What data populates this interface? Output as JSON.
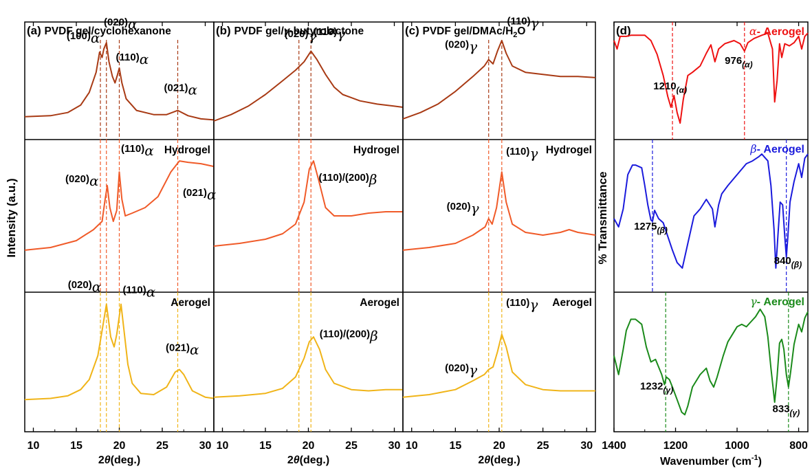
{
  "ylabel_left": "Intensity (a.u.)",
  "ylabel_right": "% Transmittance",
  "colors": {
    "cyclo": "#a83a14",
    "hydro": "#f05a28",
    "aero": "#f0b418",
    "alpha": "#ee1111",
    "beta": "#1a1adc",
    "gamma": "#1a8a1a"
  },
  "chart_data": [
    {
      "type": "line",
      "panel": "a",
      "title_prefix": "(a)",
      "title": "PVDF gel/cyclohexanone",
      "xlabel": "2θ(deg.)",
      "xticks": [
        "10",
        "15",
        "20",
        "25",
        "30"
      ],
      "xlim": [
        9,
        31
      ],
      "ref_lines": [
        17.8,
        18.5,
        20.0,
        26.8
      ],
      "series": [
        {
          "name": "",
          "color": "#a83a14",
          "x": [
            9,
            12,
            14,
            15.5,
            16.5,
            17.3,
            17.7,
            18.0,
            18.2,
            18.5,
            18.8,
            19.2,
            19.5,
            19.8,
            20.0,
            20.3,
            20.8,
            22,
            24,
            25.5,
            26.8,
            28,
            29.5,
            31
          ],
          "y": [
            0.16,
            0.17,
            0.2,
            0.27,
            0.39,
            0.58,
            0.77,
            0.72,
            0.8,
            0.86,
            0.68,
            0.54,
            0.48,
            0.56,
            0.62,
            0.48,
            0.33,
            0.22,
            0.18,
            0.18,
            0.22,
            0.17,
            0.14,
            0.13
          ],
          "labels": [
            {
              "text": "(100)",
              "greek": "α"
            },
            {
              "text": "(020)",
              "greek": "α"
            },
            {
              "text": "(110)",
              "greek": "α"
            },
            {
              "text": "(021)",
              "greek": "α"
            }
          ]
        },
        {
          "name": "Hydrogel",
          "color": "#f05a28",
          "x": [
            9,
            12,
            15,
            17,
            18,
            18.3,
            18.6,
            18.9,
            19.3,
            19.7,
            20.0,
            20.3,
            20.7,
            21.5,
            23,
            24.5,
            26,
            27,
            28,
            29.5,
            31
          ],
          "y": [
            0.25,
            0.27,
            0.32,
            0.4,
            0.46,
            0.6,
            0.72,
            0.56,
            0.46,
            0.54,
            0.82,
            0.62,
            0.5,
            0.52,
            0.56,
            0.64,
            0.82,
            0.9,
            0.89,
            0.88,
            0.86
          ],
          "labels": [
            {
              "text": "(020)",
              "greek": "α"
            },
            {
              "text": "(110)",
              "greek": "α"
            },
            {
              "text": "(021)",
              "greek": "α"
            }
          ]
        },
        {
          "name": "Aerogel",
          "color": "#f0b418",
          "x": [
            9,
            12,
            14,
            15.5,
            16.5,
            17.5,
            18.0,
            18.5,
            19.0,
            19.4,
            19.7,
            20.2,
            20.6,
            21.0,
            21.5,
            22.5,
            24,
            25.5,
            26.5,
            27,
            27.5,
            28.5,
            30,
            31
          ],
          "y": [
            0.2,
            0.21,
            0.23,
            0.28,
            0.36,
            0.55,
            0.75,
            0.96,
            0.7,
            0.62,
            0.72,
            0.96,
            0.72,
            0.48,
            0.33,
            0.25,
            0.24,
            0.3,
            0.42,
            0.44,
            0.4,
            0.27,
            0.22,
            0.21
          ],
          "labels": [
            {
              "text": "(020)",
              "greek": "α"
            },
            {
              "text": "(110)",
              "greek": "α"
            },
            {
              "text": "(021)",
              "greek": "α"
            }
          ]
        }
      ]
    },
    {
      "type": "line",
      "panel": "b",
      "title_prefix": "(b)",
      "title": "PVDF gel/γ-butyrolactone",
      "xlabel": "2θ(deg.)",
      "xticks": [
        "10",
        "15",
        "20",
        "25",
        "30"
      ],
      "xlim": [
        9,
        31
      ],
      "ref_lines": [
        18.9,
        20.3
      ],
      "series": [
        {
          "name": "",
          "color": "#a83a14",
          "x": [
            9,
            11,
            13,
            15,
            17,
            18.5,
            19.5,
            20.3,
            21,
            22,
            23,
            24,
            26,
            28,
            30,
            31
          ],
          "y": [
            0.12,
            0.18,
            0.26,
            0.37,
            0.5,
            0.6,
            0.68,
            0.78,
            0.7,
            0.56,
            0.44,
            0.37,
            0.31,
            0.28,
            0.26,
            0.25
          ],
          "labels": [
            {
              "text": "(020)",
              "greek": "γ"
            },
            {
              "text": "(110)",
              "greek": "γ"
            }
          ]
        },
        {
          "name": "Hydrogel",
          "color": "#f05a28",
          "x": [
            9,
            12,
            15,
            17,
            18.5,
            19.5,
            20.1,
            20.6,
            21.2,
            22,
            23,
            25,
            27,
            29,
            31
          ],
          "y": [
            0.28,
            0.3,
            0.33,
            0.37,
            0.44,
            0.6,
            0.84,
            0.9,
            0.76,
            0.56,
            0.5,
            0.5,
            0.52,
            0.53,
            0.53
          ],
          "labels": [
            {
              "text": "(110)/(200)",
              "greek": "β"
            }
          ]
        },
        {
          "name": "Aerogel",
          "color": "#f0b418",
          "x": [
            9,
            12,
            15,
            17,
            18.5,
            19.5,
            20.1,
            20.6,
            21.3,
            22,
            23,
            25,
            27,
            29,
            31
          ],
          "y": [
            0.22,
            0.23,
            0.25,
            0.29,
            0.38,
            0.53,
            0.66,
            0.7,
            0.6,
            0.44,
            0.33,
            0.28,
            0.27,
            0.28,
            0.28
          ],
          "labels": [
            {
              "text": "(110)/(200)",
              "greek": "β"
            }
          ]
        }
      ]
    },
    {
      "type": "line",
      "panel": "c",
      "title_prefix": "(c)",
      "title": "PVDF gel/DMAc/H",
      "title_sub": "2",
      "title_end": "O",
      "xlabel": "2θ(deg.)",
      "xticks": [
        "10",
        "15",
        "20",
        "25",
        "30"
      ],
      "xlim": [
        9,
        31
      ],
      "ref_lines": [
        18.8,
        20.3
      ],
      "series": [
        {
          "name": "",
          "color": "#a83a14",
          "x": [
            9,
            11,
            13,
            15,
            17,
            18.3,
            18.8,
            19.3,
            19.8,
            20.3,
            20.8,
            21.5,
            23,
            25,
            27,
            29,
            31
          ],
          "y": [
            0.14,
            0.2,
            0.28,
            0.4,
            0.54,
            0.64,
            0.7,
            0.66,
            0.78,
            0.88,
            0.76,
            0.64,
            0.58,
            0.56,
            0.54,
            0.54,
            0.53
          ],
          "labels": [
            {
              "text": "(020)",
              "greek": "γ"
            },
            {
              "text": "(110)",
              "greek": "γ"
            }
          ]
        },
        {
          "name": "Hydrogel",
          "color": "#f05a28",
          "x": [
            9,
            12,
            15,
            17,
            18.4,
            18.8,
            19.2,
            19.7,
            20.3,
            20.8,
            21.5,
            23,
            25,
            27,
            28,
            29,
            31
          ],
          "y": [
            0.25,
            0.27,
            0.3,
            0.36,
            0.42,
            0.48,
            0.44,
            0.56,
            0.82,
            0.6,
            0.44,
            0.38,
            0.36,
            0.38,
            0.4,
            0.38,
            0.36
          ],
          "labels": [
            {
              "text": "(020)",
              "greek": "γ"
            },
            {
              "text": "(110)",
              "greek": "γ"
            }
          ]
        },
        {
          "name": "Aerogel",
          "color": "#f0b418",
          "x": [
            9,
            12,
            15,
            17,
            18.3,
            18.8,
            19.3,
            19.8,
            20.3,
            20.8,
            21.5,
            23,
            25,
            27,
            29,
            31
          ],
          "y": [
            0.22,
            0.24,
            0.28,
            0.35,
            0.4,
            0.44,
            0.46,
            0.58,
            0.72,
            0.62,
            0.42,
            0.32,
            0.28,
            0.27,
            0.27,
            0.27
          ],
          "labels": [
            {
              "text": "(020)",
              "greek": "γ"
            },
            {
              "text": "(110)",
              "greek": "γ"
            }
          ]
        }
      ]
    },
    {
      "type": "line",
      "panel": "d",
      "title_prefix": "(d)",
      "xlabel": "Wavenumber (cm",
      "xlabel_sup": "-1",
      "xlabel_end": ")",
      "xticks": [
        "1400",
        "1200",
        "1000",
        "800"
      ],
      "xlim": [
        1400,
        770
      ],
      "series": [
        {
          "name": "α- Aerogel",
          "greek": "α",
          "rest": "- Aerogel",
          "color": "#ee1111",
          "x": [
            1400,
            1390,
            1380,
            1360,
            1345,
            1330,
            1300,
            1280,
            1260,
            1240,
            1225,
            1215,
            1205,
            1195,
            1185,
            1175,
            1160,
            1145,
            1120,
            1100,
            1085,
            1072,
            1060,
            1040,
            1010,
            990,
            976,
            965,
            945,
            920,
            900,
            885,
            878,
            870,
            862,
            855,
            845,
            830,
            815,
            800,
            790,
            780,
            770
          ],
          "y": [
            0.88,
            0.8,
            0.92,
            0.92,
            0.93,
            0.93,
            0.93,
            0.88,
            0.75,
            0.55,
            0.35,
            0.25,
            0.36,
            0.2,
            0.1,
            0.32,
            0.55,
            0.58,
            0.64,
            0.76,
            0.84,
            0.68,
            0.8,
            0.85,
            0.88,
            0.85,
            0.78,
            0.86,
            0.9,
            0.93,
            0.95,
            0.8,
            0.3,
            0.5,
            0.85,
            0.72,
            0.85,
            0.83,
            0.86,
            0.92,
            0.8,
            0.92,
            0.95
          ],
          "peaks": [
            "1210",
            "976"
          ],
          "peak_tags": [
            "(α)",
            "(α)"
          ],
          "ref_lines": [
            1210,
            976
          ]
        },
        {
          "name": "β- Aerogel",
          "greek": "β",
          "rest": "- Aerogel",
          "color": "#1a1adc",
          "x": [
            1400,
            1385,
            1370,
            1355,
            1340,
            1330,
            1310,
            1300,
            1290,
            1280,
            1275,
            1268,
            1255,
            1240,
            1225,
            1210,
            1195,
            1178,
            1160,
            1140,
            1120,
            1100,
            1080,
            1072,
            1060,
            1050,
            1030,
            1000,
            970,
            950,
            930,
            920,
            900,
            890,
            880,
            874,
            866,
            860,
            852,
            845,
            840,
            835,
            828,
            815,
            800,
            790,
            780,
            770
          ],
          "y": [
            0.48,
            0.42,
            0.55,
            0.8,
            0.87,
            0.87,
            0.85,
            0.72,
            0.58,
            0.47,
            0.46,
            0.54,
            0.48,
            0.45,
            0.35,
            0.25,
            0.16,
            0.12,
            0.3,
            0.5,
            0.55,
            0.62,
            0.55,
            0.42,
            0.58,
            0.66,
            0.72,
            0.8,
            0.88,
            0.9,
            0.93,
            0.95,
            0.9,
            0.72,
            0.4,
            0.12,
            0.4,
            0.6,
            0.58,
            0.35,
            0.2,
            0.35,
            0.6,
            0.75,
            0.88,
            0.78,
            0.92,
            0.95
          ],
          "peaks": [
            "1275",
            "840"
          ],
          "peak_tags": [
            "(β)",
            "(β)"
          ],
          "ref_lines": [
            1275,
            840
          ]
        },
        {
          "name": "γ- Aerogel",
          "greek": "γ",
          "rest": "- Aerogel",
          "color": "#1a8a1a",
          "x": [
            1400,
            1385,
            1370,
            1360,
            1345,
            1330,
            1310,
            1295,
            1280,
            1265,
            1255,
            1245,
            1236,
            1230,
            1220,
            1210,
            1195,
            1180,
            1170,
            1160,
            1145,
            1120,
            1100,
            1088,
            1076,
            1065,
            1045,
            1030,
            1000,
            985,
            970,
            955,
            940,
            925,
            910,
            900,
            890,
            878,
            870,
            862,
            855,
            848,
            840,
            833,
            826,
            815,
            800,
            790,
            780,
            770
          ],
          "y": [
            0.55,
            0.4,
            0.6,
            0.75,
            0.84,
            0.84,
            0.8,
            0.62,
            0.5,
            0.52,
            0.46,
            0.4,
            0.32,
            0.38,
            0.36,
            0.3,
            0.2,
            0.1,
            0.08,
            0.15,
            0.3,
            0.4,
            0.45,
            0.35,
            0.3,
            0.38,
            0.55,
            0.66,
            0.78,
            0.8,
            0.78,
            0.82,
            0.86,
            0.92,
            0.86,
            0.7,
            0.45,
            0.18,
            0.38,
            0.65,
            0.68,
            0.6,
            0.4,
            0.3,
            0.42,
            0.64,
            0.8,
            0.74,
            0.85,
            0.9
          ],
          "peaks": [
            "1232",
            "833"
          ],
          "peak_tags": [
            "(γ)",
            "(γ)"
          ],
          "ref_lines": [
            1232,
            833
          ]
        }
      ]
    }
  ]
}
